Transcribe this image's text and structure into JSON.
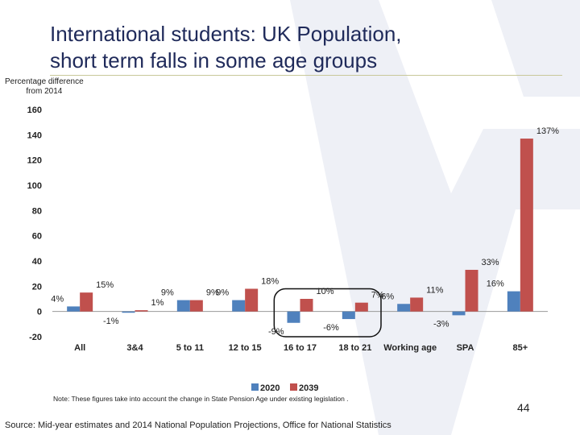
{
  "slide": {
    "title_line1": "International students: UK Population,",
    "title_line2": "short term falls in some age groups",
    "y_axis_label_line1": "Percentage difference",
    "y_axis_label_line2": "from 2014",
    "note": "Note: These figures take into account the change in State Pension Age under existing legislation .",
    "source": "Source: Mid-year estimates and 2014 National Population Projections, Office for National Statistics",
    "page_number": "44"
  },
  "chart_data": {
    "type": "bar",
    "categories": [
      "All",
      "3&4",
      "5 to 11",
      "12 to 15",
      "16 to 17",
      "18 to 21",
      "Working age",
      "SPA",
      "85+"
    ],
    "series": [
      {
        "name": "2020",
        "color": "#4f81bd",
        "values": [
          4,
          -1,
          9,
          9,
          -9,
          -6,
          6,
          -3,
          16
        ],
        "labels": [
          "4%",
          "-1%",
          "9%",
          "9%",
          "-9%",
          "-6%",
          "6%",
          "-3%",
          "16%"
        ]
      },
      {
        "name": "2039",
        "color": "#c0504d",
        "values": [
          15,
          1,
          9,
          18,
          10,
          7,
          11,
          33,
          137
        ],
        "labels": [
          "15%",
          "1%",
          "9%",
          "18%",
          "10%",
          "7%",
          "11%",
          "33%",
          "137%"
        ]
      }
    ],
    "ylim": [
      -20,
      160
    ],
    "yticks": [
      "-20",
      "0",
      "20",
      "40",
      "60",
      "80",
      "100",
      "120",
      "140",
      "160"
    ],
    "grid": false,
    "legend": "bottom",
    "highlight_ellipse_categories": [
      "16 to 17",
      "18 to 21"
    ]
  }
}
